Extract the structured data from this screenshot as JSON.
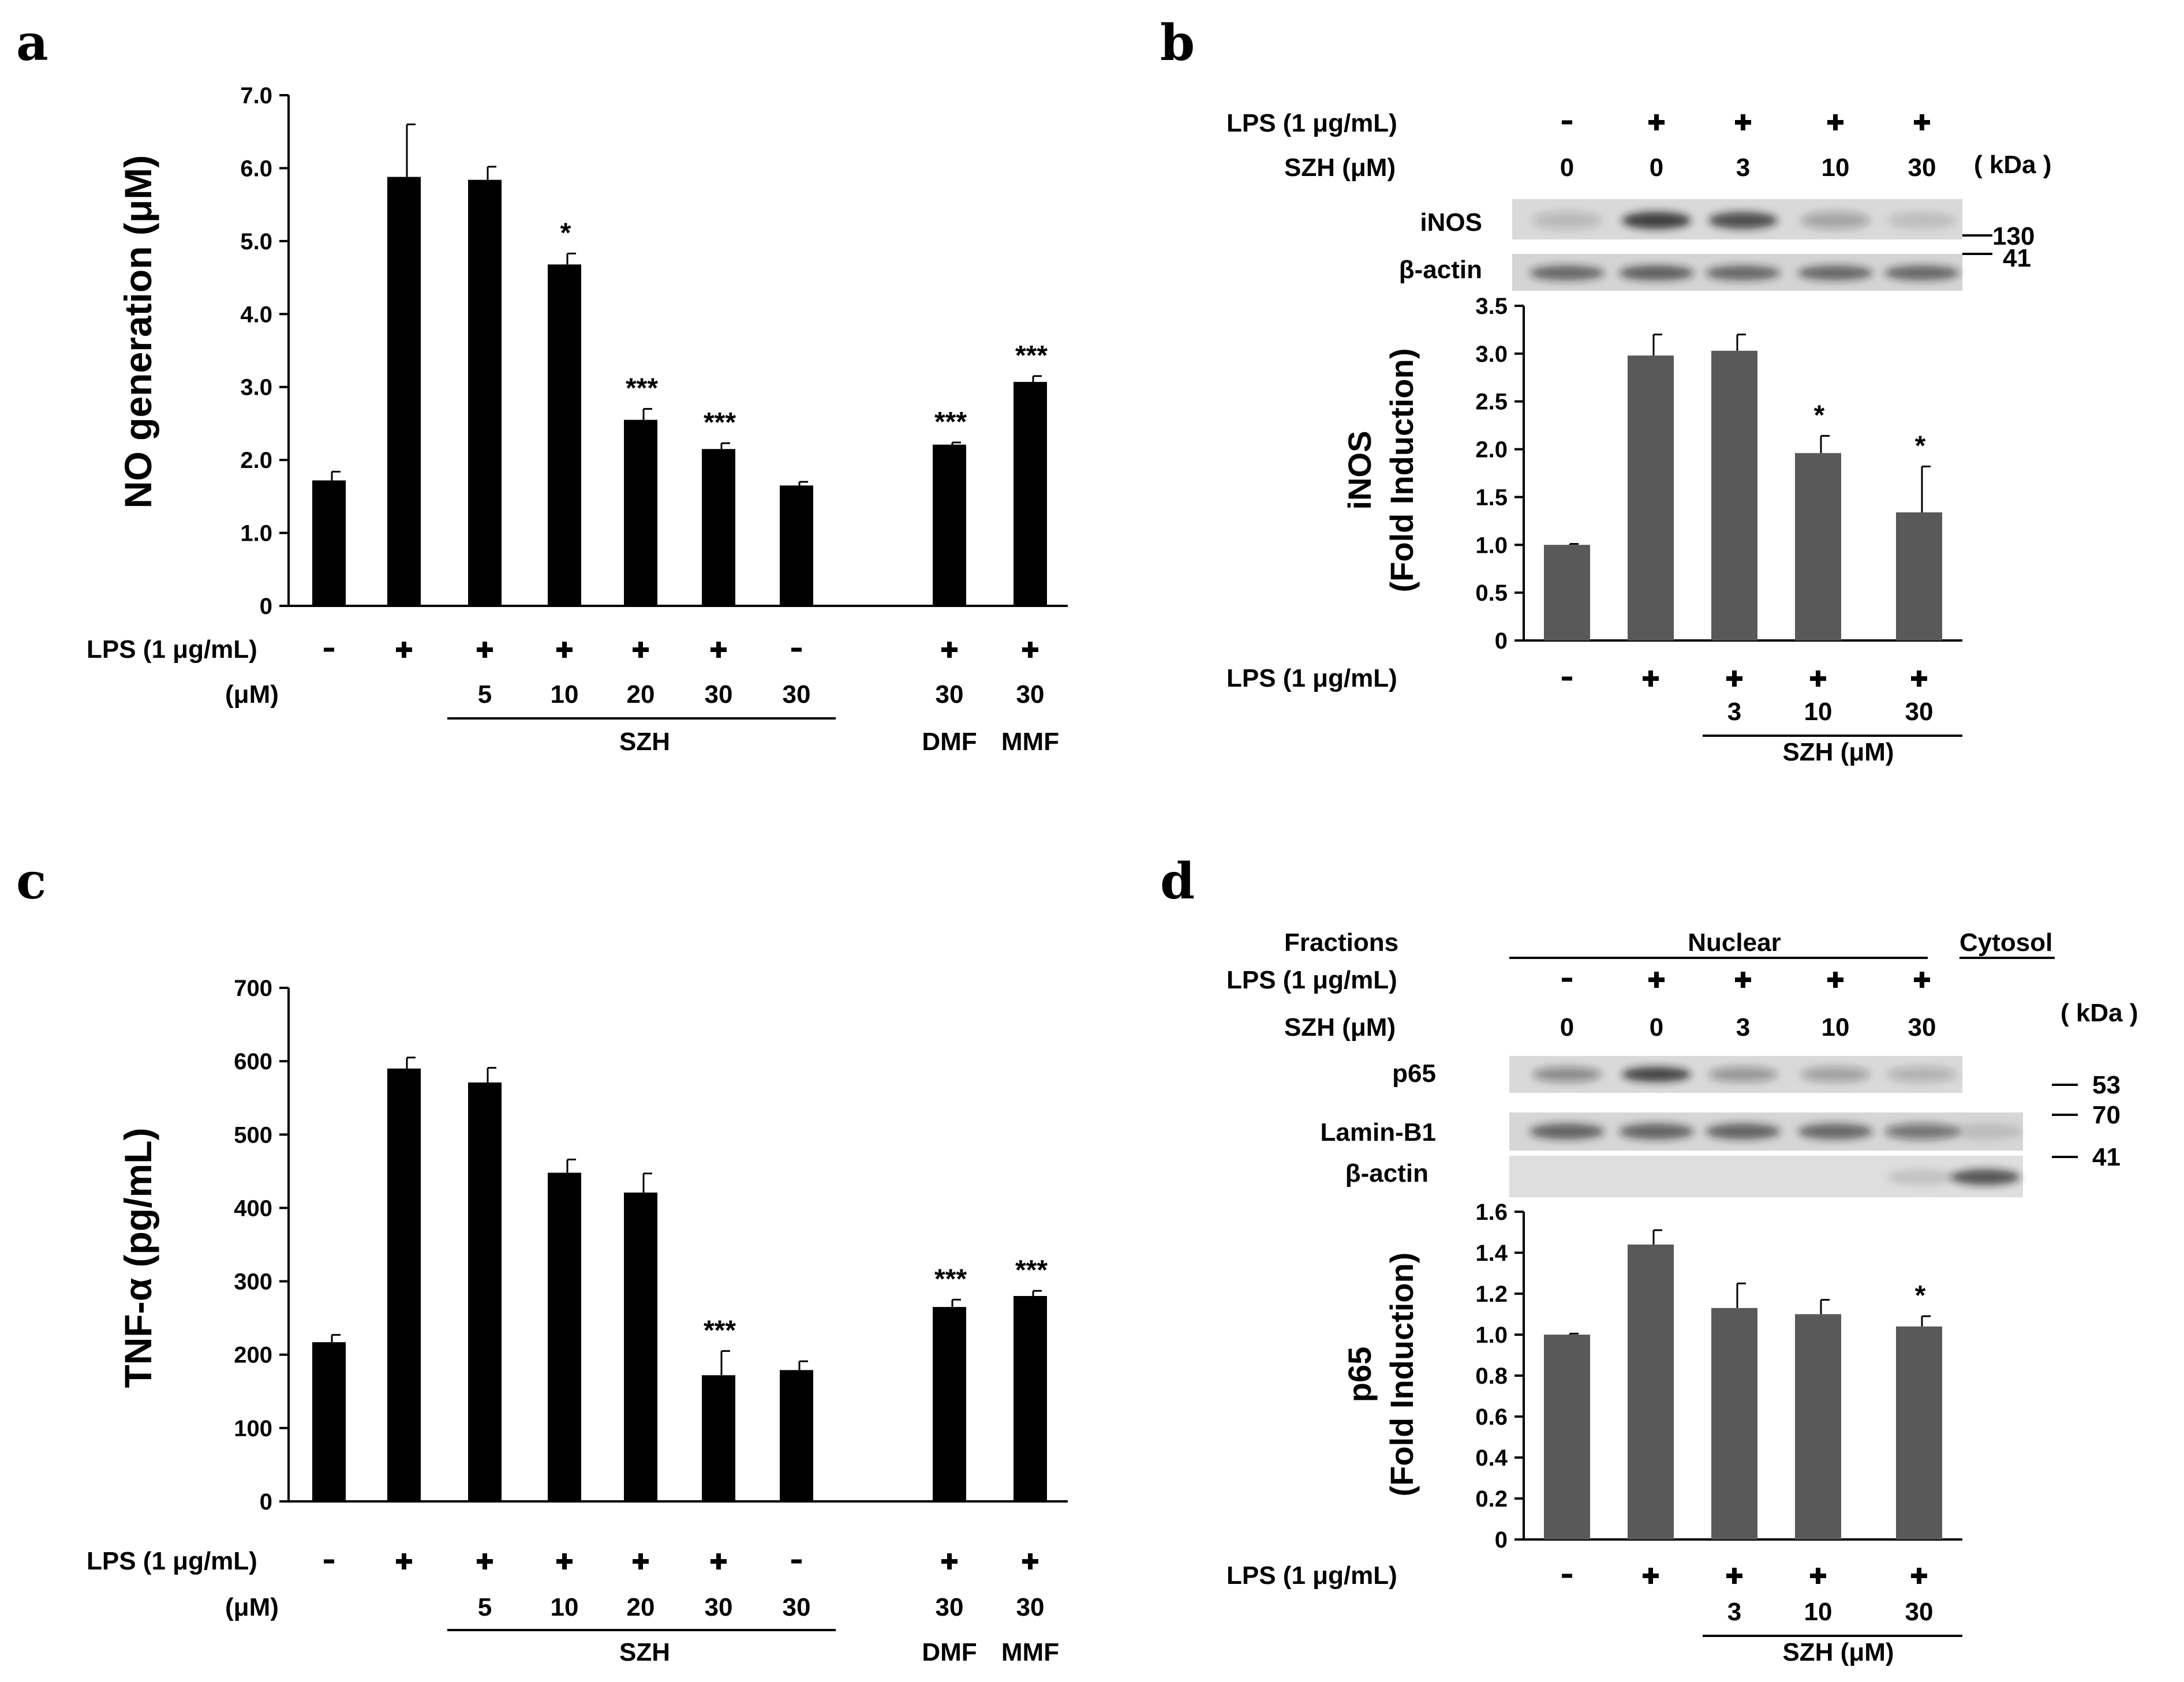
{
  "panels": {
    "a": {
      "letter": "a",
      "under_labels": [
        "SZH",
        "DMF",
        "MMF"
      ]
    },
    "b": {
      "letter": "b",
      "blot_labels": [
        "iNOS",
        "β-actin"
      ],
      "kda_title": "( kDa )",
      "markers": [
        "130",
        "41"
      ],
      "szh_title": "SZH (μM)",
      "szh_values": [
        "0",
        "0",
        "3",
        "10",
        "30"
      ]
    },
    "c": {
      "letter": "c",
      "under_labels": [
        "SZH",
        "DMF",
        "MMF"
      ]
    },
    "d": {
      "letter": "d",
      "fractions_title": "Fractions",
      "nuclear": "Nuclear",
      "cytosol": "Cytosol",
      "blot_labels": [
        "p65",
        "Lamin-B1",
        "β-actin"
      ],
      "kda_title": "( kDa )",
      "markers": [
        "53",
        "70",
        "41"
      ],
      "szh_title": "SZH (μM)",
      "szh_values": [
        "0",
        "0",
        "3",
        "10",
        "30"
      ]
    }
  },
  "chart_data": [
    {
      "id": "a",
      "type": "bar",
      "color": "#000000",
      "ylabel": "NO generation (μM)",
      "ylim": [
        0,
        7
      ],
      "yticks": [
        "0",
        "1.0",
        "2.0",
        "3.0",
        "4.0",
        "5.0",
        "6.0",
        "7.0"
      ],
      "values": [
        1.72,
        5.88,
        5.84,
        4.68,
        2.55,
        2.15,
        1.65,
        2.21,
        3.07
      ],
      "errors": [
        0.12,
        0.72,
        0.18,
        0.15,
        0.15,
        0.08,
        0.05,
        0.03,
        0.08
      ],
      "significance": [
        "",
        "",
        "",
        "*",
        "***",
        "***",
        "",
        "***",
        "***"
      ],
      "row1_label": "LPS (1 μg/mL)",
      "lps": [
        "-",
        "+",
        "+",
        "+",
        "+",
        "+",
        "-",
        "+",
        "+"
      ],
      "row2_label": "(μM)",
      "doses": [
        "",
        "",
        "5",
        "10",
        "20",
        "30",
        "30",
        "30",
        "30"
      ]
    },
    {
      "id": "b",
      "type": "bar",
      "color": "#595959",
      "ylabel": "iNOS",
      "ylabel2": "(Fold Induction)",
      "ylim": [
        0,
        3.5
      ],
      "yticks": [
        "0",
        "0.5",
        "1.0",
        "1.5",
        "2.0",
        "2.5",
        "3.0",
        "3.5"
      ],
      "values": [
        1.0,
        2.98,
        3.03,
        1.96,
        1.34
      ],
      "errors": [
        0.01,
        0.22,
        0.17,
        0.18,
        0.48
      ],
      "significance": [
        "",
        "",
        "",
        "*",
        "*"
      ],
      "row1_label": "LPS (1 μg/mL)",
      "lps": [
        "-",
        "+",
        "+",
        "+",
        "+"
      ],
      "doses": [
        "",
        "",
        "3",
        "10",
        "30"
      ]
    },
    {
      "id": "c",
      "type": "bar",
      "color": "#000000",
      "ylabel": "TNF-α (pg/mL)",
      "ylim": [
        0,
        700
      ],
      "yticks": [
        "0",
        "100",
        "200",
        "300",
        "400",
        "500",
        "600",
        "700"
      ],
      "values": [
        217,
        590,
        571,
        448,
        421,
        172,
        179,
        265,
        280
      ],
      "errors": [
        10,
        15,
        20,
        18,
        26,
        33,
        12,
        10,
        7
      ],
      "significance": [
        "",
        "",
        "",
        "",
        "",
        "***",
        "",
        "***",
        "***"
      ],
      "row1_label": "LPS (1 μg/mL)",
      "lps": [
        "-",
        "+",
        "+",
        "+",
        "+",
        "+",
        "-",
        "+",
        "+"
      ],
      "row2_label": "(μM)",
      "doses": [
        "",
        "",
        "5",
        "10",
        "20",
        "30",
        "30",
        "30",
        "30"
      ]
    },
    {
      "id": "d",
      "type": "bar",
      "color": "#595959",
      "ylabel": "p65",
      "ylabel2": "(Fold Induction)",
      "ylim": [
        0,
        1.6
      ],
      "yticks": [
        "0",
        "0.2",
        "0.4",
        "0.6",
        "0.8",
        "1.0",
        "1.2",
        "1.4",
        "1.6"
      ],
      "values": [
        1.0,
        1.44,
        1.13,
        1.1,
        1.04
      ],
      "errors": [
        0.005,
        0.07,
        0.12,
        0.07,
        0.05
      ],
      "significance": [
        "",
        "",
        "",
        "",
        "*"
      ],
      "row1_label": "LPS (1 μg/mL)",
      "lps": [
        "-",
        "+",
        "+",
        "+",
        "+"
      ],
      "doses": [
        "",
        "",
        "3",
        "10",
        "30"
      ]
    }
  ]
}
